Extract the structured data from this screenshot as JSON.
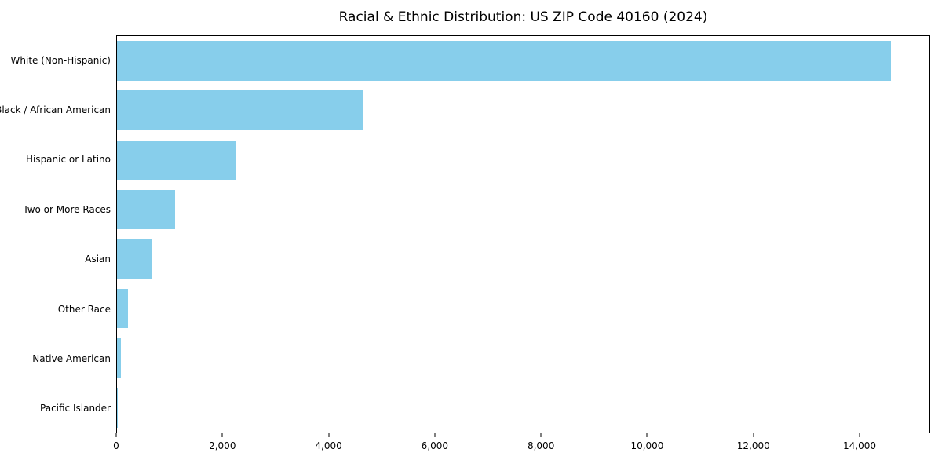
{
  "figure": {
    "background": "#ffffff"
  },
  "colors": {
    "bar": "#87CEEB",
    "axis": "#000000",
    "text": "#000000"
  },
  "chart_data": {
    "type": "bar",
    "orientation": "horizontal",
    "title": "Racial & Ethnic Distribution: US ZIP Code 40160 (2024)",
    "categories": [
      "White (Non-Hispanic)",
      "Black / African American",
      "Hispanic or Latino",
      "Two or More Races",
      "Asian",
      "Other Race",
      "Native American",
      "Pacific Islander"
    ],
    "values": [
      14600,
      4650,
      2250,
      1100,
      650,
      200,
      80,
      15
    ],
    "xlabel": "",
    "ylabel": "",
    "xlim": [
      0,
      15330
    ],
    "xticks": [
      0,
      2000,
      4000,
      6000,
      8000,
      10000,
      12000,
      14000
    ],
    "xtick_labels": [
      "0",
      "2,000",
      "4,000",
      "6,000",
      "8,000",
      "10,000",
      "12,000",
      "14,000"
    ],
    "grid": false,
    "legend": false
  }
}
